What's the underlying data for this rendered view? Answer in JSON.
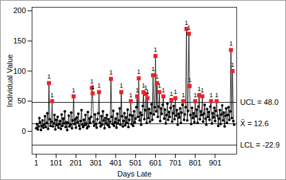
{
  "chart_data": {
    "type": "line",
    "x_label": "Days Late",
    "y_label": "Individual Value",
    "xlim": [
      -20,
      1010
    ],
    "xticks": [
      1,
      101,
      201,
      301,
      401,
      501,
      601,
      701,
      801,
      901
    ],
    "ylim": [
      -38,
      206
    ],
    "yticks": [
      0,
      50,
      100,
      150,
      200
    ],
    "grid": false,
    "limits": [
      {
        "value": 48.0,
        "label": "UCL = 48.0"
      },
      {
        "value": 12.6,
        "label": "X̄ = 12.6"
      },
      {
        "value": -22.9,
        "label": "LCL = -22.9"
      }
    ],
    "series": [
      {
        "color": "#000000",
        "marker": "circle",
        "line_style": "solid",
        "x": [
          1,
          5,
          9,
          13,
          17,
          21,
          25,
          29,
          33,
          37,
          41,
          45,
          49,
          53,
          57,
          61,
          65,
          69,
          73,
          77,
          81,
          85,
          89,
          93,
          97,
          101,
          105,
          109,
          113,
          117,
          121,
          125,
          129,
          133,
          137,
          141,
          145,
          149,
          153,
          157,
          161,
          165,
          169,
          173,
          177,
          181,
          185,
          189,
          193,
          197,
          201,
          205,
          209,
          213,
          217,
          221,
          225,
          229,
          233,
          237,
          241,
          245,
          249,
          253,
          257,
          261,
          265,
          269,
          273,
          277,
          281,
          285,
          289,
          293,
          297,
          301,
          305,
          309,
          313,
          317,
          321,
          325,
          329,
          333,
          337,
          341,
          345,
          349,
          353,
          357,
          361,
          365,
          369,
          373,
          377,
          381,
          385,
          389,
          393,
          397,
          401,
          405,
          409,
          413,
          417,
          421,
          425,
          429,
          433,
          437,
          441,
          445,
          449,
          453,
          457,
          461,
          465,
          469,
          473,
          477,
          481,
          485,
          489,
          493,
          497,
          501,
          505,
          509,
          513,
          517,
          521,
          525,
          529,
          533,
          537,
          541,
          545,
          549,
          553,
          557,
          561,
          565,
          569,
          573,
          577,
          581,
          585,
          589,
          593,
          597,
          601,
          605,
          609,
          613,
          617,
          621,
          625,
          629,
          633,
          637,
          641,
          645,
          649,
          653,
          657,
          661,
          665,
          669,
          673,
          677,
          681,
          685,
          689,
          693,
          697,
          701,
          705,
          709,
          713,
          717,
          721,
          725,
          729,
          733,
          737,
          741,
          745,
          749,
          753,
          757,
          761,
          765,
          769,
          773,
          777,
          781,
          785,
          789,
          793,
          797,
          801,
          805,
          809,
          813,
          817,
          821,
          825,
          829,
          833,
          837,
          841,
          845,
          849,
          853,
          857,
          861,
          865,
          869,
          873,
          877,
          881,
          885,
          889,
          893,
          897,
          901,
          905,
          909,
          913,
          917,
          921,
          925,
          929,
          933,
          937,
          941,
          945,
          949,
          953,
          957,
          961,
          965,
          969,
          973,
          977,
          981,
          985,
          989,
          993,
          997
        ],
        "values": [
          5,
          12,
          3,
          8,
          22,
          15,
          2,
          9,
          18,
          6,
          11,
          25,
          7,
          14,
          30,
          4,
          80,
          20,
          9,
          16,
          50,
          8,
          13,
          27,
          3,
          19,
          10,
          24,
          6,
          12,
          17,
          4,
          28,
          9,
          21,
          13,
          33,
          7,
          15,
          2,
          14,
          26,
          8,
          11,
          31,
          5,
          18,
          58,
          12,
          20,
          6,
          23,
          15,
          29,
          9,
          4,
          17,
          35,
          11,
          7,
          19,
          10,
          27,
          13,
          5,
          32,
          8,
          21,
          14,
          24,
          72,
          63,
          16,
          9,
          28,
          12,
          6,
          20,
          30,
          65,
          14,
          8,
          25,
          11,
          33,
          18,
          5,
          22,
          13,
          27,
          10,
          20,
          7,
          16,
          87,
          24,
          12,
          34,
          9,
          15,
          21,
          6,
          29,
          13,
          18,
          38,
          11,
          65,
          25,
          8,
          17,
          30,
          10,
          23,
          14,
          36,
          7,
          19,
          27,
          50,
          12,
          26,
          9,
          33,
          15,
          21,
          40,
          58,
          24,
          88,
          18,
          31,
          11,
          27,
          42,
          65,
          20,
          35,
          62,
          14,
          55,
          22,
          37,
          16,
          30,
          45,
          19,
          93,
          28,
          40,
          125,
          33,
          80,
          24,
          41,
          65,
          17,
          38,
          29,
          44,
          58,
          21,
          36,
          13,
          27,
          46,
          19,
          32,
          24,
          39,
          52,
          16,
          30,
          42,
          20,
          55,
          26,
          35,
          11,
          29,
          23,
          38,
          14,
          31,
          44,
          50,
          19,
          28,
          40,
          170,
          18,
          34,
          162,
          75,
          27,
          12,
          39,
          22,
          30,
          15,
          50,
          25,
          36,
          14,
          41,
          60,
          20,
          33,
          27,
          58,
          16,
          29,
          44,
          21,
          11,
          37,
          24,
          32,
          19,
          41,
          50,
          13,
          30,
          23,
          39,
          17,
          34,
          50,
          26,
          9,
          21,
          35,
          12,
          28,
          43,
          18,
          31,
          8,
          26,
          38,
          14,
          27,
          40,
          19,
          33,
          135,
          22,
          100,
          17,
          11
        ]
      },
      {
        "color": "#e8232a",
        "marker": "square",
        "line_style": "none",
        "x": [
          65,
          81,
          189,
          281,
          285,
          317,
          377,
          429,
          477,
          509,
          517,
          541,
          553,
          561,
          589,
          601,
          609,
          621,
          641,
          681,
          701,
          741,
          757,
          769,
          773,
          801,
          821,
          837,
          881,
          909,
          981,
          989
        ],
        "values": [
          80,
          50,
          58,
          72,
          63,
          65,
          87,
          65,
          50,
          58,
          88,
          65,
          62,
          55,
          93,
          125,
          80,
          65,
          58,
          52,
          55,
          50,
          170,
          162,
          75,
          50,
          60,
          58,
          50,
          50,
          135,
          100
        ],
        "labels": [
          "1",
          "1",
          "1",
          "1",
          "1",
          "1",
          "1",
          "1",
          "1",
          "1",
          "1",
          "1",
          "1",
          "1",
          "1",
          "1",
          "1",
          "1",
          "1",
          "1",
          "1",
          "1",
          "1",
          "1",
          "1",
          "1",
          "1",
          "1",
          "1",
          "1",
          "1",
          "1"
        ]
      }
    ]
  }
}
